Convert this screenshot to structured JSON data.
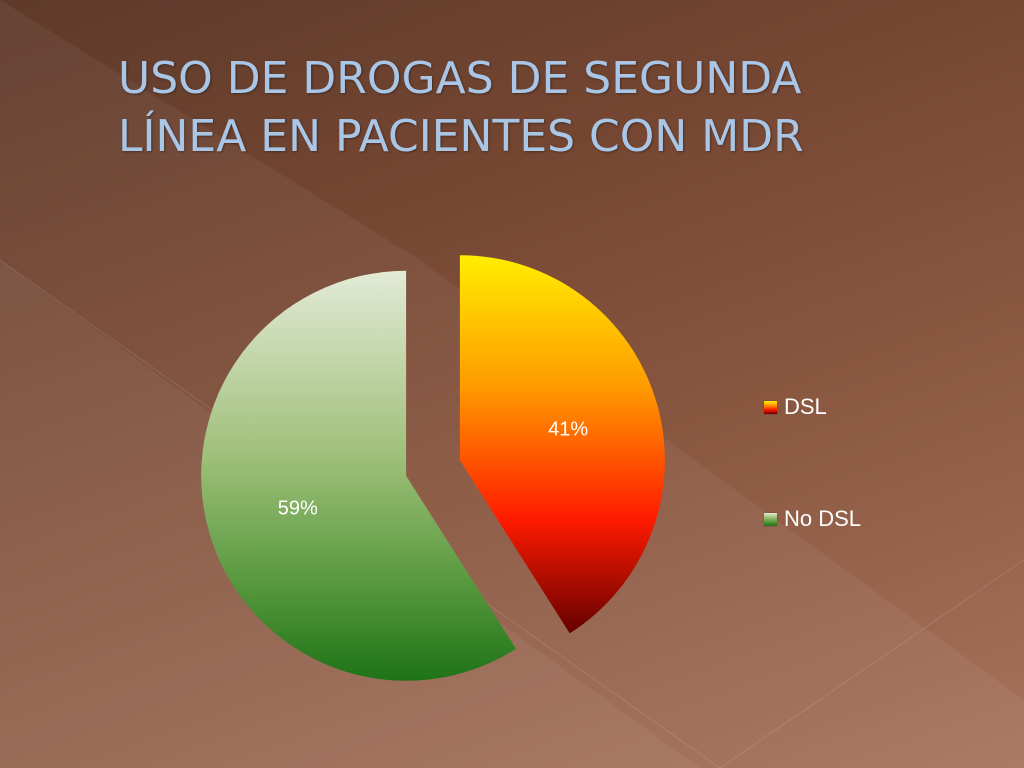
{
  "slide": {
    "title_lines": [
      "USO DE DROGAS DE SEGUNDA",
      "LÍNEA EN PACIENTES CON MDR"
    ]
  },
  "chart_data": {
    "type": "pie",
    "title": "USO DE DROGAS DE SEGUNDA LÍNEA EN PACIENTES CON MDR",
    "categories": [
      "DSL",
      "No DSL"
    ],
    "values": [
      41,
      59
    ],
    "data_labels": [
      "41%",
      "59%"
    ],
    "legend_position": "right",
    "exploded": true,
    "colors": {
      "DSL": [
        "#ffee00",
        "#ff9a00",
        "#ff1a00",
        "#650000"
      ],
      "No DSL": [
        "#e3ead6",
        "#9fc07a",
        "#5a9a40",
        "#1f7317"
      ]
    }
  }
}
